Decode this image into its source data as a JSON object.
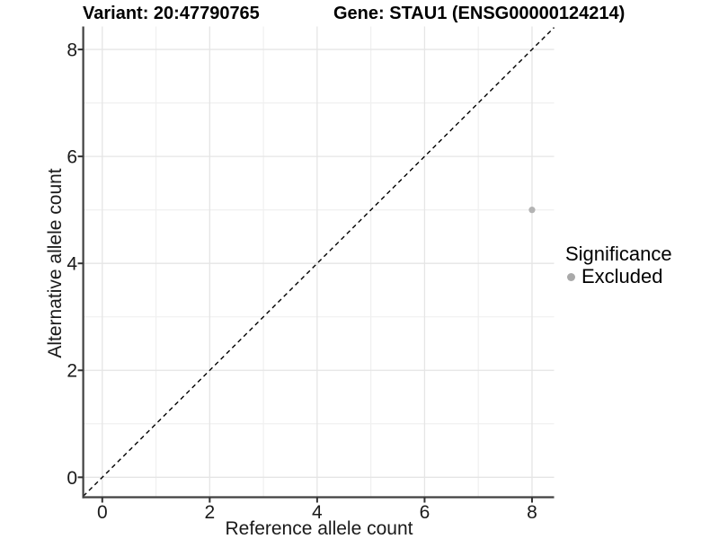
{
  "header": {
    "variant_title": "Variant: 20:47790765",
    "gene_title": "Gene: STAU1 (ENSG00000124214)"
  },
  "chart_data": {
    "type": "scatter",
    "xlabel": "Reference allele count",
    "ylabel": "Alternative allele count",
    "xlim": [
      -0.4,
      8.4
    ],
    "ylim": [
      -0.4,
      8.4
    ],
    "xticks": [
      0,
      2,
      4,
      6,
      8
    ],
    "yticks": [
      0,
      2,
      4,
      6,
      8
    ],
    "minor_grid": [
      1,
      3,
      5,
      7
    ],
    "grid": "major and minor, light gray on white",
    "identity_line": {
      "style": "dashed",
      "slope": 1,
      "intercept": 0,
      "color": "#000000"
    },
    "series": [
      {
        "name": "Excluded",
        "color": "#b3b3b3",
        "points": [
          {
            "x": 8,
            "y": 5
          }
        ]
      }
    ],
    "legend": {
      "title": "Significance",
      "position": "right",
      "entries": [
        {
          "label": "Excluded",
          "color": "#a9a9a9"
        }
      ]
    }
  },
  "colors": {
    "background": "#ffffff",
    "grid_major": "#e5e5e5",
    "grid_minor": "#f0f0f0",
    "axis_line": "#404040",
    "tick_mark": "#333333",
    "tick_label": "#1a1a1a",
    "point": "#b3b3b3"
  }
}
